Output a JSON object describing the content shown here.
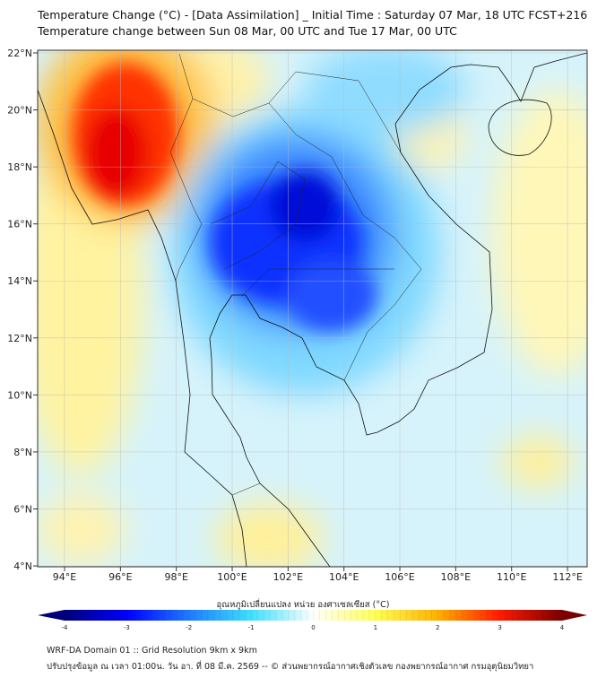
{
  "header": {
    "title": "Temperature Change (°C) - [Data Assimilation] _ Initial Time : Saturday 07 Mar, 18 UTC FCST+216",
    "subtitle": "Temperature change between Sun 08 Mar, 00 UTC and Tue 17 Mar, 00 UTC"
  },
  "map": {
    "lat_ticks": [
      "22°N",
      "20°N",
      "18°N",
      "16°N",
      "14°N",
      "12°N",
      "10°N",
      "8°N",
      "6°N",
      "4°N"
    ],
    "lon_ticks": [
      "94°E",
      "96°E",
      "98°E",
      "100°E",
      "102°E",
      "104°E",
      "106°E",
      "108°E",
      "110°E",
      "112°E"
    ]
  },
  "colorbar": {
    "label": "อุณหภูมิเปลี่ยนแปลง หน่วย องศาเซลเซียส (°C)",
    "ticks": [
      "-4",
      "-3",
      "-2",
      "-1",
      "0",
      "1",
      "2",
      "3",
      "4"
    ],
    "colors": [
      "#00007a",
      "#0000ff",
      "#1e7bff",
      "#3fe0ff",
      "#ffffff",
      "#ffff55",
      "#ffb000",
      "#ff1a00",
      "#7a0000"
    ]
  },
  "footer": {
    "line1": "WRF-DA Domain 01 :: Grid Resolution 9km x 9km",
    "line2": "ปรับปรุงข้อมูล ณ เวลา 01:00น. วัน อา. ที่ 08 มี.ค. 2569 -- © ส่วนพยากรณ์อากาศเชิงตัวเลข กองพยากรณ์อากาศ กรมอุตุนิยมวิทยา"
  }
}
